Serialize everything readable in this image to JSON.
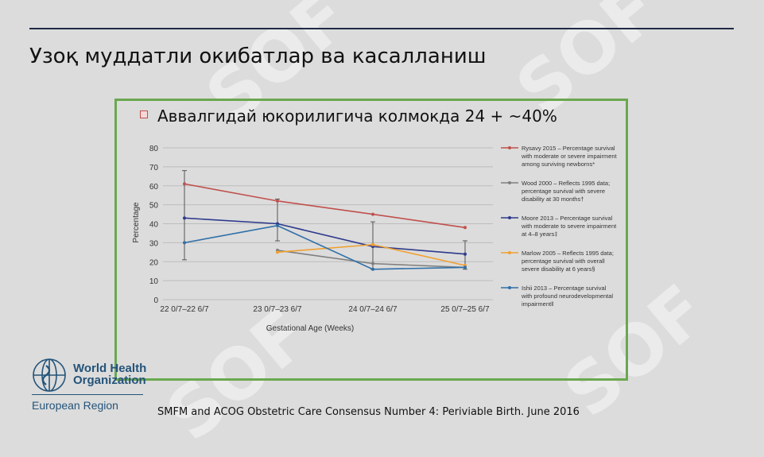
{
  "slide": {
    "title": "Узоқ муддатли окибатлар  ва касалланиш",
    "bullet": "Аввалгидай юкорилигича колмокда 24  + ~40%",
    "citation": "SMFM and ACOG  Obstetric Care Consensus Number 4: Periviable Birth. June 2016"
  },
  "logo": {
    "line1": "World Health",
    "line2": "Organization",
    "region": "European Region",
    "color": "#24547a"
  },
  "watermark": {
    "text": "SOF"
  },
  "chart_data": {
    "type": "line",
    "categories": [
      "22 0/7–22 6/7",
      "23 0/7–23 6/7",
      "24 0/7–24 6/7",
      "25 0/7–25 6/7"
    ],
    "xlabel": "Gestational Age (Weeks)",
    "ylabel": "Percentage",
    "ylim": [
      0,
      80
    ],
    "yticks": [
      0,
      10,
      20,
      30,
      40,
      50,
      60,
      70,
      80
    ],
    "grid": true,
    "legend_position": "right",
    "series": [
      {
        "name": "Rysavy 2015 – Percentage survival with moderate or severe impairment among surviving newborns*",
        "legend_lines": [
          "Rysavy 2015 – Percentage survival",
          "with moderate or severe impairment",
          "among surviving newborns*"
        ],
        "color": "#c0504d",
        "values": [
          61,
          52,
          45,
          38
        ]
      },
      {
        "name": "Wood 2000 – Reflects 1995 data; percentage survival with severe disability at 30 months†",
        "legend_lines": [
          "Wood 2000 – Reflects 1995 data;",
          "percentage survival with severe",
          "disability at 30 months†"
        ],
        "color": "#7f7f7f",
        "values": [
          null,
          26,
          19,
          17
        ]
      },
      {
        "name": "Moore 2013 – Percentage survival with moderate to severe impairment at 4–8 years‡",
        "legend_lines": [
          "Moore 2013 – Percentage survival",
          "with moderate to severe impairment",
          "at 4–8 years‡"
        ],
        "color": "#2e3a8c",
        "values": [
          43,
          40,
          28,
          24
        ]
      },
      {
        "name": "Marlow 2005 – Reflects 1995 data; percentage survival with overall severe disability at 6 years§",
        "legend_lines": [
          "Marlow 2005 – Reflects 1995 data;",
          "percentage survival with overall",
          "severe disability at 6 years§"
        ],
        "color": "#f0a030",
        "values": [
          null,
          25,
          29,
          18
        ]
      },
      {
        "name": "Ishii 2013 – Percentage survival with profound neurodevelopmental impairment‖",
        "legend_lines": [
          "Ishii 2013 – Percentage survival",
          "with profound neurodevelopmental",
          "impairment‖"
        ],
        "color": "#2f6fa8",
        "values": [
          30,
          39,
          16,
          17
        ]
      }
    ],
    "error_bars": [
      {
        "category_index": 0,
        "low": 21,
        "high": 68
      },
      {
        "category_index": 1,
        "low": 31,
        "high": 53
      },
      {
        "category_index": 2,
        "low": 16,
        "high": 41
      },
      {
        "category_index": 3,
        "low": 16,
        "high": 31
      }
    ]
  }
}
